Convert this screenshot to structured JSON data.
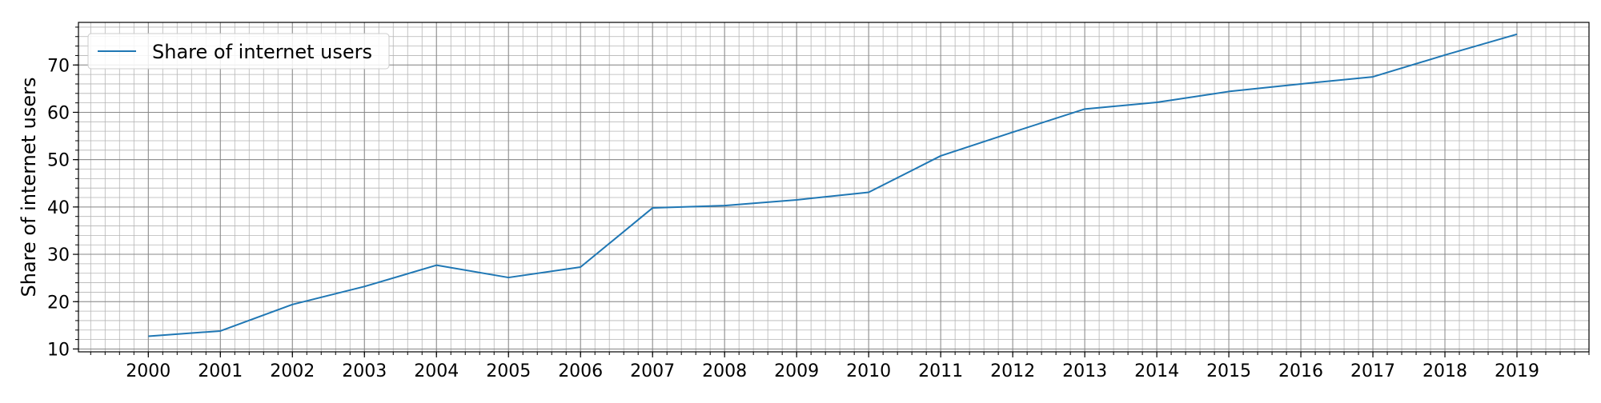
{
  "chart_data": {
    "type": "line",
    "title": "",
    "xlabel": "",
    "ylabel": "Share of internet users",
    "x": [
      2000,
      2001,
      2002,
      2003,
      2004,
      2005,
      2006,
      2007,
      2008,
      2009,
      2010,
      2011,
      2012,
      2013,
      2014,
      2015,
      2016,
      2017,
      2018,
      2019
    ],
    "series": [
      {
        "name": "Share of internet users",
        "color": "#1f77b4",
        "values": [
          12.7,
          13.8,
          19.4,
          23.2,
          27.7,
          25.1,
          27.3,
          39.8,
          40.3,
          41.5,
          43.1,
          50.8,
          55.8,
          60.7,
          62.1,
          64.4,
          66.0,
          67.5,
          72.1,
          76.5
        ]
      }
    ],
    "xlim": [
      1999.03,
      2020.0
    ],
    "ylim": [
      9.4,
      79.0
    ],
    "xticks": [
      "2000",
      "2001",
      "2002",
      "2003",
      "2004",
      "2005",
      "2006",
      "2007",
      "2008",
      "2009",
      "2010",
      "2011",
      "2012",
      "2013",
      "2014",
      "2015",
      "2016",
      "2017",
      "2018",
      "2019"
    ],
    "yticks": [
      "10",
      "20",
      "30",
      "40",
      "50",
      "60",
      "70"
    ],
    "grid": true,
    "minor_grid": true,
    "legend_position": "top-left"
  }
}
